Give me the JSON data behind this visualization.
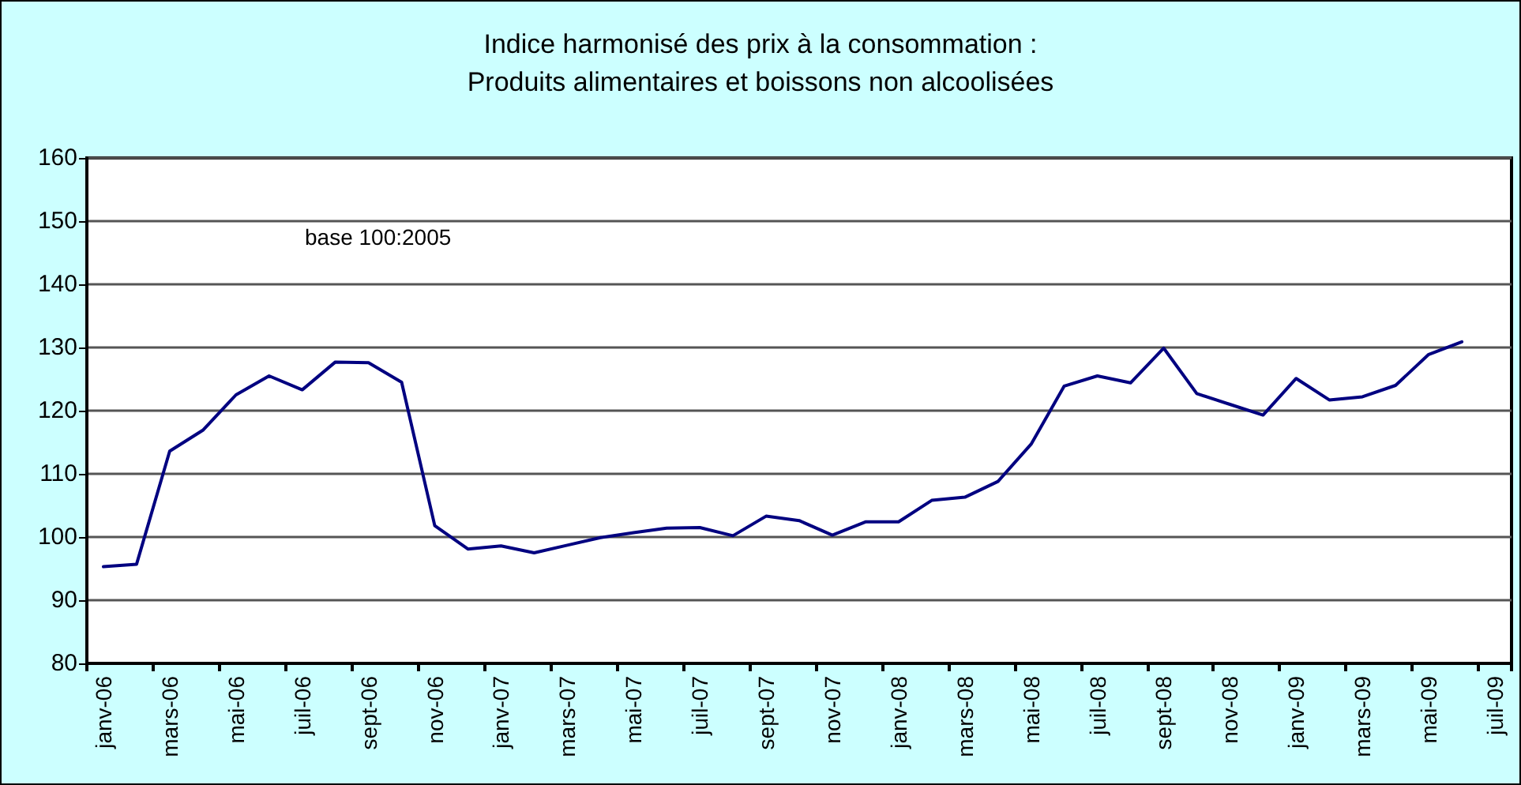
{
  "chart_data": {
    "type": "line",
    "title": "Indice harmonisé des prix à la consommation :\nProduits alimentaires et boissons non alcoolisées",
    "annotations": [
      "base 100:2005"
    ],
    "categories": [
      "janv-06",
      null,
      "mars-06",
      null,
      "mai-06",
      null,
      "juil-06",
      null,
      "sept-06",
      null,
      "nov-06",
      null,
      "janv-07",
      null,
      "mars-07",
      null,
      "mai-07",
      null,
      "juil-07",
      null,
      "sept-07",
      null,
      "nov-07",
      null,
      "janv-08",
      null,
      "mars-08",
      null,
      "mai-08",
      null,
      "juil-08",
      null,
      "sept-08",
      null,
      "nov-08",
      null,
      "janv-09",
      null,
      "mars-09",
      null,
      "mai-09",
      null,
      "juil-09"
    ],
    "series": [
      {
        "color": "#000080",
        "values": [
          95.3,
          95.7,
          113.6,
          116.9,
          122.5,
          125.5,
          123.3,
          127.7,
          127.6,
          124.5,
          101.8,
          98.1,
          98.6,
          97.5,
          98.7,
          99.9,
          100.7,
          101.4,
          101.5,
          100.2,
          103.3,
          102.6,
          100.3,
          102.4,
          102.4,
          105.8,
          106.3,
          108.8,
          114.7,
          123.9,
          125.5,
          124.4,
          129.9,
          122.7,
          121.0,
          119.3,
          125.1,
          121.7,
          122.2,
          124.0,
          128.9,
          130.9,
          null
        ]
      }
    ],
    "ylim": [
      80,
      160
    ],
    "yticks": [
      80,
      90,
      100,
      110,
      120,
      130,
      140,
      150,
      160
    ],
    "grid": "y",
    "marker": "none",
    "line_style": "solid"
  }
}
